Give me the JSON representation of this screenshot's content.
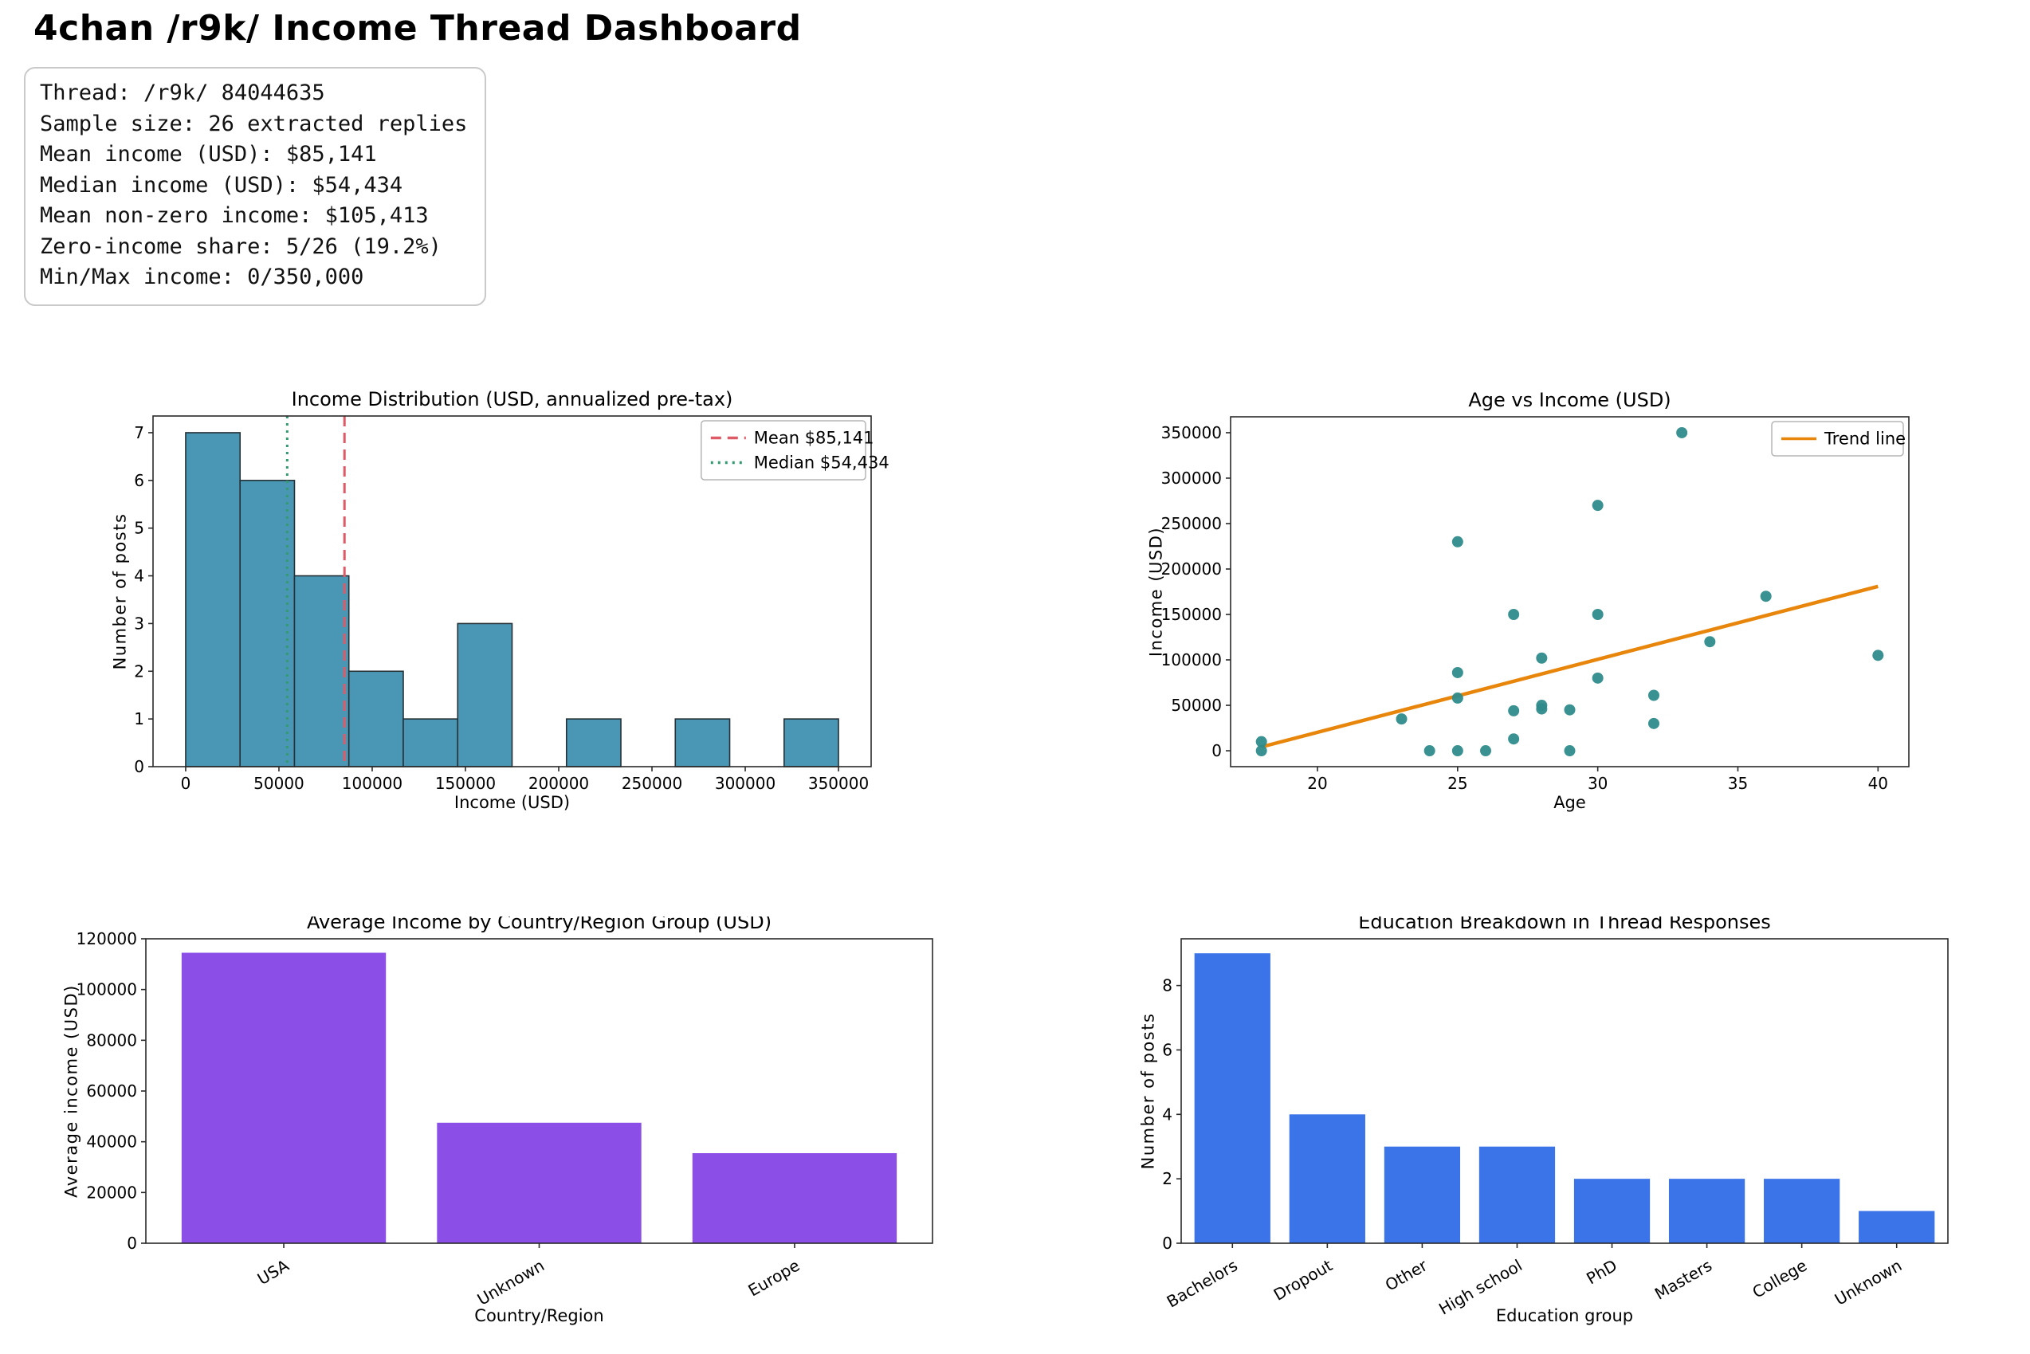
{
  "page_title": "4chan /r9k/ Income Thread Dashboard",
  "stats_box": {
    "lines": [
      "Thread: /r9k/ 84044635",
      "Sample size: 26 extracted replies",
      "Mean income (USD): $85,141",
      "Median income (USD): $54,434",
      "Mean non-zero income: $105,413",
      "Zero-income share: 5/26 (19.2%)",
      "Min/Max income: 0/350,000"
    ]
  },
  "chart_data": [
    {
      "id": "income-histogram",
      "type": "bar",
      "subtype": "histogram",
      "title": "Income Distribution (USD, annualized pre-tax)",
      "xlabel": "Income (USD)",
      "ylabel": "Number of posts",
      "bins": {
        "start": 0,
        "width": 29166.667,
        "counts": [
          7,
          6,
          4,
          2,
          1,
          3,
          0,
          1,
          0,
          1,
          0,
          1
        ]
      },
      "xlim": [
        -17500,
        367500
      ],
      "ylim": [
        0,
        7.35
      ],
      "xticks": [
        0,
        50000,
        100000,
        150000,
        200000,
        250000,
        300000,
        350000
      ],
      "yticks": [
        0,
        1,
        2,
        3,
        4,
        5,
        6,
        7
      ],
      "bar_color": "#4a97b5",
      "bar_edge": "#263238",
      "grid": false,
      "legend_position": "upper right",
      "ref_lines": [
        {
          "name": "mean-line",
          "value": 85141,
          "label": "Mean $85,141",
          "color": "#de5a66",
          "dash": [
            13,
            8
          ]
        },
        {
          "name": "median-line",
          "value": 54434,
          "label": "Median $54,434",
          "color": "#349a70",
          "dash": [
            3,
            6
          ]
        }
      ]
    },
    {
      "id": "age-income-scatter",
      "type": "scatter",
      "title": "Age vs Income (USD)",
      "xlabel": "Age",
      "ylabel": "Income (USD)",
      "points": [
        [
          18,
          10000
        ],
        [
          18,
          0
        ],
        [
          23,
          35000
        ],
        [
          24,
          0
        ],
        [
          25,
          230000
        ],
        [
          25,
          86000
        ],
        [
          25,
          58000
        ],
        [
          25,
          0
        ],
        [
          26,
          0
        ],
        [
          27,
          150000
        ],
        [
          27,
          44000
        ],
        [
          27,
          13000
        ],
        [
          28,
          102000
        ],
        [
          28,
          50000
        ],
        [
          28,
          46000
        ],
        [
          29,
          45000
        ],
        [
          29,
          0
        ],
        [
          30,
          270000
        ],
        [
          30,
          150000
        ],
        [
          30,
          80000
        ],
        [
          32,
          61000
        ],
        [
          32,
          30000
        ],
        [
          33,
          350000
        ],
        [
          34,
          120000
        ],
        [
          36,
          170000
        ],
        [
          40,
          105000
        ]
      ],
      "point_color": "#2e8b8b",
      "trend_line": {
        "label": "Trend line",
        "color": "#e8860c",
        "x": [
          18,
          40
        ],
        "y": [
          4200,
          180900
        ]
      },
      "xlim": [
        16.9,
        41.1
      ],
      "ylim": [
        -17500,
        367500
      ],
      "xticks": [
        20,
        25,
        30,
        35,
        40
      ],
      "yticks": [
        0,
        50000,
        100000,
        150000,
        200000,
        250000,
        300000,
        350000
      ],
      "grid": false,
      "legend_position": "upper right"
    },
    {
      "id": "avg-income-by-region",
      "type": "bar",
      "title": "Average Income by Country/Region Group (USD)",
      "xlabel": "Country/Region",
      "ylabel": "Average income (USD)",
      "categories": [
        "USA",
        "Unknown",
        "Europe"
      ],
      "values": [
        114500,
        47500,
        35500
      ],
      "ylim": [
        0,
        120000
      ],
      "yticks": [
        0,
        20000,
        40000,
        60000,
        80000,
        100000,
        120000
      ],
      "bar_color": "#8b4fe8",
      "grid": false,
      "tick_rotation": 30
    },
    {
      "id": "education-breakdown",
      "type": "bar",
      "title": "Education Breakdown in Thread Responses",
      "xlabel": "Education group",
      "ylabel": "Number of posts",
      "categories": [
        "Bachelors",
        "Dropout",
        "Other",
        "High school",
        "PhD",
        "Masters",
        "College",
        "Unknown"
      ],
      "values": [
        9,
        4,
        3,
        3,
        2,
        2,
        2,
        1
      ],
      "ylim": [
        0,
        9.45
      ],
      "yticks": [
        0,
        2,
        4,
        6,
        8
      ],
      "bar_color": "#3b73e8",
      "grid": false,
      "tick_rotation": 30
    }
  ]
}
